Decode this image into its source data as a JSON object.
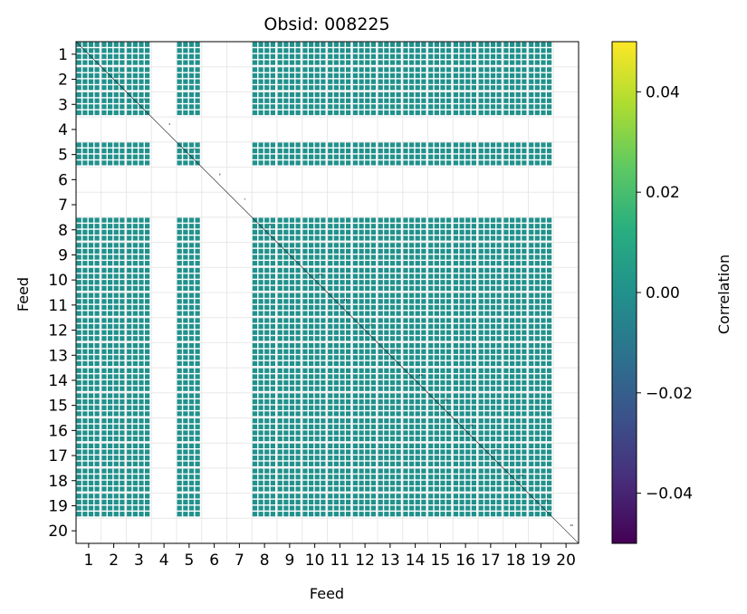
{
  "chart_data": {
    "type": "heatmap",
    "title": "Obsid: 008225",
    "xlabel": "Feed",
    "ylabel": "Feed",
    "x_ticks": [
      "1",
      "2",
      "3",
      "4",
      "5",
      "6",
      "7",
      "8",
      "9",
      "10",
      "11",
      "12",
      "13",
      "14",
      "15",
      "16",
      "17",
      "18",
      "19",
      "20"
    ],
    "y_ticks": [
      "1",
      "2",
      "3",
      "4",
      "5",
      "6",
      "7",
      "8",
      "9",
      "10",
      "11",
      "12",
      "13",
      "14",
      "15",
      "16",
      "17",
      "18",
      "19",
      "20"
    ],
    "feeds_with_data": [
      1,
      2,
      3,
      5,
      8,
      9,
      10,
      11,
      12,
      13,
      14,
      15,
      16,
      17,
      18,
      19
    ],
    "empty_feeds": [
      4,
      6,
      7,
      20
    ],
    "cell_value": 0.0,
    "subblocks_per_feed": 4,
    "colormap": "viridis",
    "colorbar": {
      "label": "Correlation",
      "min": -0.05,
      "max": 0.05,
      "ticks": [
        0.04,
        0.02,
        0.0,
        -0.02,
        -0.04
      ],
      "tick_labels": [
        "0.04",
        "0.02",
        "0.00",
        "−0.02",
        "−0.04"
      ]
    },
    "grid": true,
    "colors": {
      "cell": "#21918c",
      "diagonal": "#1a1a1a",
      "grid": "#e8e8e8"
    }
  }
}
